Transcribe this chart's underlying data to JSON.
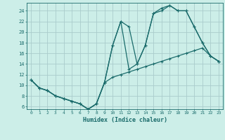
{
  "xlabel": "Humidex (Indice chaleur)",
  "bg_color": "#cceee8",
  "grid_color": "#aacccc",
  "line_color": "#1a6b6b",
  "xlim": [
    -0.5,
    23.5
  ],
  "ylim": [
    5.5,
    25.5
  ],
  "yticks": [
    6,
    8,
    10,
    12,
    14,
    16,
    18,
    20,
    22,
    24
  ],
  "xticks": [
    0,
    1,
    2,
    3,
    4,
    5,
    6,
    7,
    8,
    9,
    10,
    11,
    12,
    13,
    14,
    15,
    16,
    17,
    18,
    19,
    20,
    21,
    22,
    23
  ],
  "line1_x": [
    0,
    1,
    2,
    3,
    4,
    5,
    6,
    7,
    8,
    9,
    10,
    11,
    12,
    13,
    14,
    15,
    16,
    17,
    18,
    19,
    20,
    21,
    22,
    23
  ],
  "line1_y": [
    11,
    9.5,
    9,
    8,
    7.5,
    7,
    6.5,
    5.5,
    6.5,
    10.5,
    17.5,
    22,
    21,
    14,
    17.5,
    23.5,
    24.5,
    25,
    24,
    24,
    21,
    18,
    15.5,
    14.5
  ],
  "line2_x": [
    0,
    1,
    2,
    3,
    4,
    5,
    6,
    7,
    8,
    9,
    10,
    11,
    12,
    13,
    14,
    15,
    16,
    17,
    18,
    19,
    20,
    21,
    22,
    23
  ],
  "line2_y": [
    11,
    9.5,
    9,
    8,
    7.5,
    7,
    6.5,
    5.5,
    6.5,
    10.5,
    11.5,
    12,
    12.5,
    13,
    13.5,
    14,
    14.5,
    15,
    15.5,
    16,
    16.5,
    17,
    15.5,
    14.5
  ],
  "line3_x": [
    0,
    1,
    2,
    3,
    4,
    5,
    6,
    7,
    8,
    9,
    10,
    11,
    12,
    13,
    14,
    15,
    16,
    17,
    18,
    19,
    20,
    21,
    22,
    23
  ],
  "line3_y": [
    11,
    9.5,
    9,
    8,
    7.5,
    7,
    6.5,
    5.5,
    6.5,
    10.5,
    17.5,
    22,
    13,
    14,
    17.5,
    23.5,
    24,
    25,
    24,
    24,
    21,
    18,
    15.5,
    14.5
  ]
}
